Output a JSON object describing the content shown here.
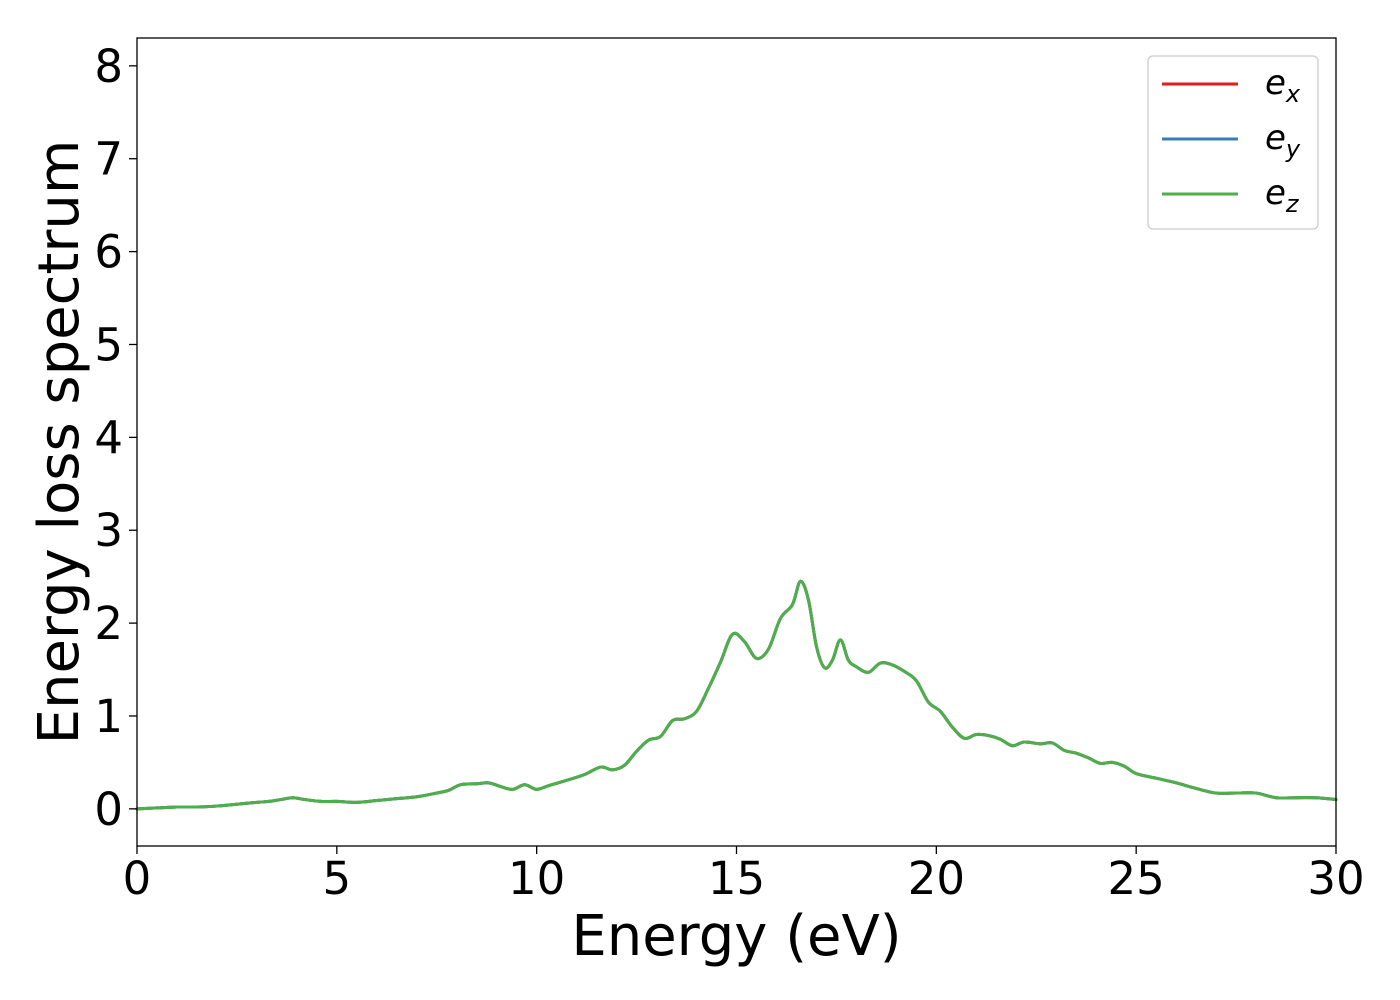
{
  "chart_data": {
    "type": "line",
    "title": "",
    "xlabel": "Energy (eV)",
    "ylabel": "Energy loss spectrum",
    "xlim": [
      0,
      30
    ],
    "ylim": [
      -0.4,
      8.3
    ],
    "xticks": [
      "0",
      "5",
      "10",
      "15",
      "20",
      "25",
      "30"
    ],
    "yticks": [
      "0",
      "1",
      "2",
      "3",
      "4",
      "5",
      "6",
      "7",
      "8"
    ],
    "grid": false,
    "legend_position": "top-right",
    "colors": {
      "e_x": "#e41a1c",
      "e_y": "#377eb8",
      "e_z": "#4daf4a"
    },
    "legend": [
      {
        "base": "e",
        "sub": "x",
        "color": "#e41a1c"
      },
      {
        "base": "e",
        "sub": "y",
        "color": "#377eb8"
      },
      {
        "base": "e",
        "sub": "z",
        "color": "#4daf4a"
      }
    ],
    "x": [
      0,
      0.5,
      1,
      1.5,
      2,
      2.5,
      3,
      3.3,
      3.6,
      3.9,
      4.2,
      4.6,
      5,
      5.5,
      6,
      6.5,
      7,
      7.5,
      7.8,
      8.1,
      8.5,
      8.8,
      9.1,
      9.4,
      9.7,
      10,
      10.3,
      10.7,
      11.2,
      11.6,
      11.9,
      12.2,
      12.5,
      12.8,
      13.1,
      13.4,
      13.7,
      14.0,
      14.3,
      14.6,
      14.9,
      15.2,
      15.5,
      15.8,
      16.1,
      16.4,
      16.6,
      16.8,
      17.0,
      17.2,
      17.4,
      17.6,
      17.8,
      18.0,
      18.3,
      18.6,
      18.9,
      19.2,
      19.5,
      19.8,
      20.1,
      20.4,
      20.7,
      21.0,
      21.3,
      21.6,
      21.9,
      22.2,
      22.6,
      22.9,
      23.2,
      23.5,
      23.8,
      24.1,
      24.4,
      24.7,
      25,
      25.5,
      26,
      26.5,
      27,
      27.5,
      28,
      28.5,
      29,
      29.5,
      30
    ],
    "series": [
      {
        "name": "e_x",
        "values": [
          0.0,
          0.01,
          0.02,
          0.02,
          0.03,
          0.05,
          0.07,
          0.08,
          0.1,
          0.12,
          0.1,
          0.08,
          0.08,
          0.07,
          0.09,
          0.11,
          0.13,
          0.17,
          0.2,
          0.26,
          0.27,
          0.28,
          0.24,
          0.21,
          0.26,
          0.21,
          0.25,
          0.3,
          0.37,
          0.45,
          0.42,
          0.47,
          0.62,
          0.74,
          0.78,
          0.95,
          0.97,
          1.05,
          1.3,
          1.58,
          1.88,
          1.8,
          1.62,
          1.72,
          2.05,
          2.2,
          2.45,
          2.25,
          1.75,
          1.52,
          1.6,
          1.82,
          1.6,
          1.53,
          1.47,
          1.57,
          1.55,
          1.48,
          1.38,
          1.15,
          1.05,
          0.88,
          0.76,
          0.8,
          0.79,
          0.75,
          0.68,
          0.72,
          0.7,
          0.71,
          0.63,
          0.6,
          0.55,
          0.49,
          0.5,
          0.46,
          0.38,
          0.33,
          0.28,
          0.22,
          0.17,
          0.17,
          0.17,
          0.12,
          0.12,
          0.12,
          0.1
        ]
      },
      {
        "name": "e_y",
        "values": [
          0.0,
          0.01,
          0.02,
          0.02,
          0.03,
          0.05,
          0.07,
          0.08,
          0.1,
          0.12,
          0.1,
          0.08,
          0.08,
          0.07,
          0.09,
          0.11,
          0.13,
          0.17,
          0.2,
          0.26,
          0.27,
          0.28,
          0.24,
          0.21,
          0.26,
          0.21,
          0.25,
          0.3,
          0.37,
          0.45,
          0.42,
          0.47,
          0.62,
          0.74,
          0.78,
          0.95,
          0.97,
          1.05,
          1.3,
          1.58,
          1.88,
          1.8,
          1.62,
          1.72,
          2.05,
          2.2,
          2.45,
          2.25,
          1.75,
          1.52,
          1.6,
          1.82,
          1.6,
          1.53,
          1.47,
          1.57,
          1.55,
          1.48,
          1.38,
          1.15,
          1.05,
          0.88,
          0.76,
          0.8,
          0.79,
          0.75,
          0.68,
          0.72,
          0.7,
          0.71,
          0.63,
          0.6,
          0.55,
          0.49,
          0.5,
          0.46,
          0.38,
          0.33,
          0.28,
          0.22,
          0.17,
          0.17,
          0.17,
          0.12,
          0.12,
          0.12,
          0.1
        ]
      },
      {
        "name": "e_z",
        "values": [
          0.0,
          0.01,
          0.02,
          0.02,
          0.03,
          0.05,
          0.07,
          0.08,
          0.1,
          0.12,
          0.1,
          0.08,
          0.08,
          0.07,
          0.09,
          0.11,
          0.13,
          0.17,
          0.2,
          0.26,
          0.27,
          0.28,
          0.24,
          0.21,
          0.26,
          0.21,
          0.25,
          0.3,
          0.37,
          0.45,
          0.42,
          0.47,
          0.62,
          0.74,
          0.78,
          0.95,
          0.97,
          1.05,
          1.3,
          1.58,
          1.88,
          1.8,
          1.62,
          1.72,
          2.05,
          2.2,
          2.45,
          2.25,
          1.75,
          1.52,
          1.6,
          1.82,
          1.6,
          1.53,
          1.47,
          1.57,
          1.55,
          1.48,
          1.38,
          1.15,
          1.05,
          0.88,
          0.76,
          0.8,
          0.79,
          0.75,
          0.68,
          0.72,
          0.7,
          0.71,
          0.63,
          0.6,
          0.55,
          0.49,
          0.5,
          0.46,
          0.38,
          0.33,
          0.28,
          0.22,
          0.17,
          0.17,
          0.17,
          0.12,
          0.12,
          0.12,
          0.1
        ]
      }
    ]
  }
}
